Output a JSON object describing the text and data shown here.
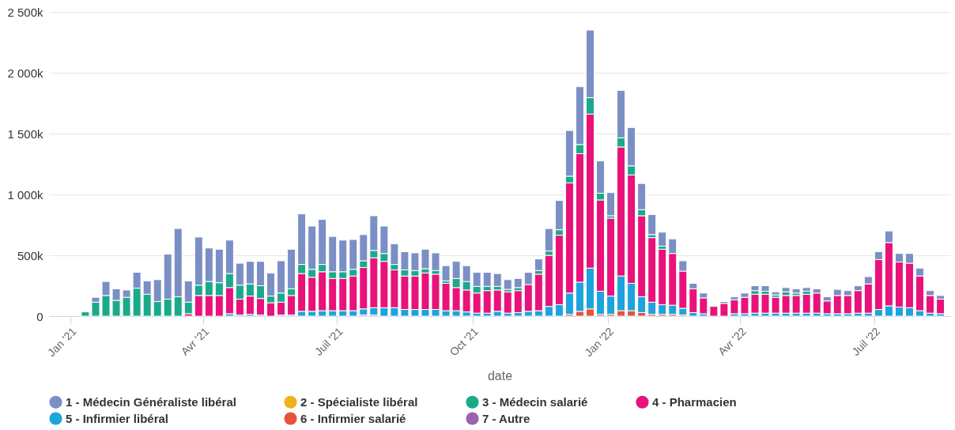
{
  "chart_data": {
    "type": "bar",
    "stacked": true,
    "xlabel": "date",
    "grid": "y",
    "legend": "bottom",
    "x": [
      "2021-01-11",
      "2021-01-18",
      "2021-01-25",
      "2021-02-01",
      "2021-02-08",
      "2021-02-15",
      "2021-02-22",
      "2021-03-01",
      "2021-03-08",
      "2021-03-15",
      "2021-03-22",
      "2021-03-29",
      "2021-04-05",
      "2021-04-12",
      "2021-04-19",
      "2021-04-26",
      "2021-05-03",
      "2021-05-10",
      "2021-05-17",
      "2021-05-24",
      "2021-05-31",
      "2021-06-07",
      "2021-06-14",
      "2021-06-21",
      "2021-06-28",
      "2021-07-05",
      "2021-07-12",
      "2021-07-19",
      "2021-07-26",
      "2021-08-02",
      "2021-08-09",
      "2021-08-16",
      "2021-08-23",
      "2021-08-30",
      "2021-09-06",
      "2021-09-13",
      "2021-09-20",
      "2021-09-27",
      "2021-10-04",
      "2021-10-11",
      "2021-10-18",
      "2021-10-25",
      "2021-11-01",
      "2021-11-08",
      "2021-11-15",
      "2021-11-22",
      "2021-11-29",
      "2021-12-06",
      "2021-12-13",
      "2021-12-20",
      "2021-12-27",
      "2022-01-03",
      "2022-01-10",
      "2022-01-17",
      "2022-01-24",
      "2022-01-31",
      "2022-02-07",
      "2022-02-14",
      "2022-02-21",
      "2022-02-28",
      "2022-03-07",
      "2022-03-14",
      "2022-03-21",
      "2022-03-28",
      "2022-04-04",
      "2022-04-11",
      "2022-04-18",
      "2022-04-25",
      "2022-05-02",
      "2022-05-09",
      "2022-05-16",
      "2022-05-23",
      "2022-05-30",
      "2022-06-06",
      "2022-06-13",
      "2022-06-20",
      "2022-06-27",
      "2022-07-04",
      "2022-07-11",
      "2022-07-18",
      "2022-07-25",
      "2022-08-01",
      "2022-08-08",
      "2022-08-15"
    ],
    "xlim": [
      "2020-12-20",
      "2022-08-19"
    ],
    "xticks": [
      {
        "value": "2021-01-01",
        "label": "Jan '21"
      },
      {
        "value": "2021-04-01",
        "label": "Avr '21"
      },
      {
        "value": "2021-07-01",
        "label": "Juil '21"
      },
      {
        "value": "2021-10-01",
        "label": "Oct '21"
      },
      {
        "value": "2022-01-01",
        "label": "Jan '22"
      },
      {
        "value": "2022-04-01",
        "label": "Avr '22"
      },
      {
        "value": "2022-07-01",
        "label": "Juil '22"
      }
    ],
    "ylim": [
      0,
      2500000
    ],
    "yticks": [
      0,
      {
        "value": 500000,
        "label": "500k"
      },
      {
        "value": 1000000,
        "label": "1 000k"
      },
      {
        "value": 1500000,
        "label": "1 500k"
      },
      {
        "value": 2000000,
        "label": "2 000k"
      },
      {
        "value": 2500000,
        "label": "2 500k"
      }
    ],
    "series": [
      {
        "name": "7 - Autre",
        "color": "#9c62ab",
        "values": [
          0,
          0,
          0,
          0,
          0,
          0,
          0,
          0,
          0,
          0,
          0,
          0,
          0,
          0,
          0,
          0,
          0,
          0,
          0,
          0,
          0,
          0,
          0,
          0,
          0,
          0,
          0,
          0,
          0,
          0,
          0,
          0,
          0,
          0,
          0,
          0,
          0,
          0,
          0,
          0,
          0,
          0,
          0,
          0,
          0,
          0,
          0,
          0,
          0,
          0,
          0,
          0,
          0,
          0,
          0,
          0,
          0,
          0,
          0,
          0,
          0,
          0,
          0,
          0,
          0,
          0,
          0,
          0,
          0,
          0,
          0,
          0,
          0,
          0,
          0,
          0,
          0,
          0,
          0,
          0,
          0,
          0,
          0,
          0
        ]
      },
      {
        "name": "6 - Infirmier salarié",
        "color": "#e5533a",
        "values": [
          0,
          0,
          0,
          0,
          0,
          0,
          0,
          0,
          0,
          0,
          0,
          0,
          0,
          0,
          0,
          0,
          0,
          0,
          0,
          0,
          0,
          0,
          0,
          0,
          0,
          0,
          0,
          10000,
          10000,
          0,
          0,
          0,
          0,
          0,
          0,
          0,
          0,
          0,
          0,
          0,
          0,
          0,
          0,
          0,
          0,
          0,
          0,
          15000,
          40000,
          60000,
          15000,
          15000,
          45000,
          45000,
          30000,
          15000,
          15000,
          15000,
          10000,
          0,
          0,
          0,
          0,
          0,
          0,
          0,
          0,
          0,
          0,
          0,
          0,
          0,
          0,
          0,
          0,
          0,
          0,
          0,
          0,
          0,
          0,
          0,
          0,
          0
        ]
      },
      {
        "name": "5 - Infirmier libéral",
        "color": "#1ca4dd",
        "values": [
          0,
          0,
          0,
          0,
          0,
          0,
          0,
          0,
          0,
          0,
          0,
          0,
          0,
          0,
          20000,
          10000,
          15000,
          10000,
          null,
          10000,
          10000,
          40000,
          40000,
          45000,
          45000,
          45000,
          45000,
          50000,
          60000,
          70000,
          70000,
          55000,
          55000,
          55000,
          55000,
          45000,
          45000,
          35000,
          25000,
          25000,
          40000,
          25000,
          30000,
          40000,
          45000,
          80000,
          95000,
          175000,
          240000,
          335000,
          190000,
          150000,
          285000,
          225000,
          130000,
          100000,
          80000,
          75000,
          55000,
          30000,
          20000,
          0,
          null,
          20000,
          20000,
          25000,
          25000,
          25000,
          25000,
          25000,
          25000,
          25000,
          20000,
          20000,
          20000,
          25000,
          25000,
          55000,
          85000,
          75000,
          70000,
          45000,
          25000,
          20000
        ]
      },
      {
        "name": "4 - Pharmacien",
        "color": "#e8127a",
        "values": [
          0,
          0,
          0,
          0,
          0,
          0,
          0,
          0,
          0,
          0,
          20000,
          170000,
          170000,
          170000,
          215000,
          130000,
          150000,
          135000,
          110000,
          105000,
          160000,
          310000,
          280000,
          320000,
          265000,
          265000,
          285000,
          340000,
          410000,
          380000,
          310000,
          275000,
          275000,
          300000,
          290000,
          225000,
          190000,
          180000,
          165000,
          185000,
          175000,
          175000,
          180000,
          220000,
          300000,
          420000,
          570000,
          905000,
          1055000,
          1265000,
          750000,
          640000,
          1060000,
          890000,
          665000,
          530000,
          455000,
          425000,
          305000,
          195000,
          130000,
          80000,
          105000,
          115000,
          135000,
          155000,
          155000,
          130000,
          145000,
          145000,
          155000,
          165000,
          105000,
          150000,
          150000,
          185000,
          240000,
          410000,
          520000,
          370000,
          365000,
          285000,
          145000,
          120000
        ]
      },
      {
        "name": "3 - Médecin salarié",
        "color": "#1aaa8a",
        "values": [
          35000,
          115000,
          170000,
          130000,
          155000,
          230000,
          180000,
          120000,
          140000,
          160000,
          95000,
          85000,
          115000,
          105000,
          115000,
          115000,
          100000,
          105000,
          55000,
          75000,
          55000,
          75000,
          65000,
          60000,
          55000,
          55000,
          55000,
          55000,
          60000,
          65000,
          45000,
          50000,
          45000,
          35000,
          30000,
          20000,
          75000,
          70000,
          55000,
          35000,
          30000,
          20000,
          25000,
          null,
          30000,
          35000,
          45000,
          55000,
          75000,
          135000,
          55000,
          20000,
          75000,
          75000,
          50000,
          25000,
          25000,
          0,
          0,
          0,
          0,
          0,
          0,
          0,
          0,
          30000,
          25000,
          20000,
          30000,
          20000,
          25000,
          0,
          0,
          0,
          0,
          0,
          0,
          0,
          0,
          0,
          0,
          0,
          0,
          0
        ]
      },
      {
        "name": "2 - Spécialiste libéral",
        "color": "#f0b11c",
        "values": [
          0,
          0,
          0,
          0,
          0,
          0,
          0,
          0,
          0,
          0,
          0,
          0,
          0,
          0,
          0,
          0,
          0,
          0,
          0,
          0,
          0,
          0,
          0,
          0,
          0,
          0,
          0,
          0,
          0,
          0,
          0,
          0,
          0,
          0,
          0,
          0,
          0,
          0,
          0,
          0,
          0,
          0,
          0,
          0,
          0,
          0,
          0,
          0,
          0,
          0,
          0,
          0,
          0,
          0,
          0,
          0,
          0,
          0,
          0,
          0,
          0,
          0,
          0,
          0,
          0,
          0,
          0,
          0,
          0,
          0,
          0,
          0,
          0,
          0,
          0,
          0,
          0,
          0,
          0,
          0,
          0,
          0,
          0,
          0
        ]
      },
      {
        "name": "1 - Médecin Généraliste libéral",
        "color": "#7b8fc6",
        "values": [
          0,
          40000,
          115000,
          95000,
          60000,
          130000,
          110000,
          180000,
          370000,
          560000,
          175000,
          395000,
          275000,
          275000,
          275000,
          180000,
          185000,
          200000,
          190000,
          265000,
          325000,
          415000,
          355000,
          370000,
          290000,
          260000,
          245000,
          215000,
          285000,
          225000,
          170000,
          150000,
          145000,
          160000,
          145000,
          125000,
          140000,
          130000,
          115000,
          115000,
          105000,
          80000,
          75000,
          100000,
          95000,
          185000,
          240000,
          375000,
          475000,
          555000,
          265000,
          190000,
          390000,
          315000,
          215000,
          165000,
          115000,
          120000,
          85000,
          45000,
          40000,
          0,
          15000,
          25000,
          35000,
          40000,
          45000,
          25000,
          35000,
          35000,
          30000,
          35000,
          35000,
          50000,
          40000,
          40000,
          60000,
          65000,
          95000,
          70000,
          80000,
          65000,
          40000,
          30000
        ]
      }
    ]
  }
}
